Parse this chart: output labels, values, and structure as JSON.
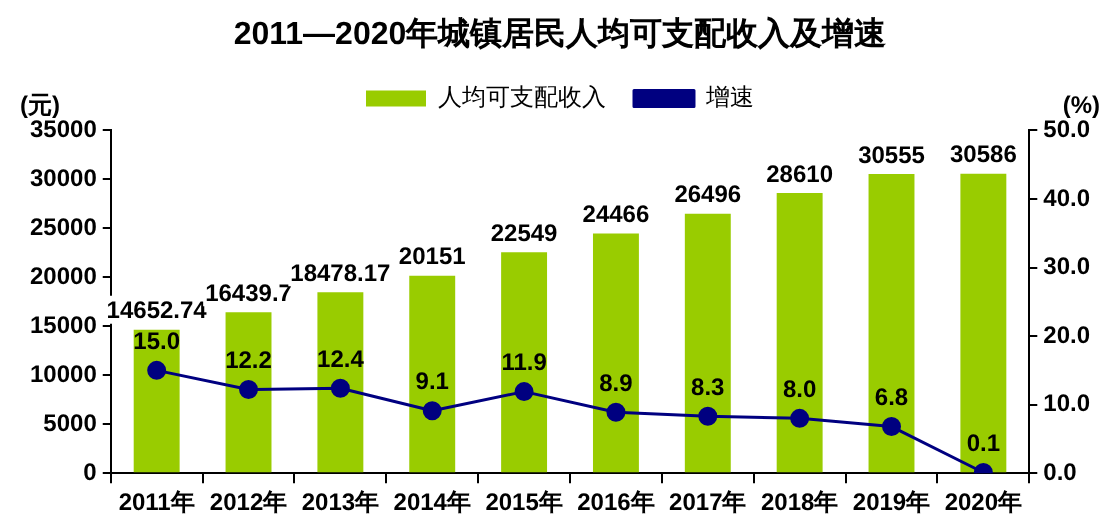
{
  "chart_data": {
    "type": "bar",
    "title": "2011—2020年城镇居民人均可支配收入及增速",
    "categories": [
      "2011年",
      "2012年",
      "2013年",
      "2014年",
      "2015年",
      "2016年",
      "2017年",
      "2018年",
      "2019年",
      "2020年"
    ],
    "series": [
      {
        "name": "人均可支配收入",
        "color": "#99cc00",
        "values": [
          14652.74,
          16439.7,
          18478.17,
          20151,
          22549,
          24466,
          26496,
          28610,
          30555,
          30586
        ],
        "value_labels": [
          "14652.74",
          "16439.7",
          "18478.17",
          "20151",
          "22549",
          "24466",
          "26496",
          "28610",
          "30555",
          "30586"
        ]
      },
      {
        "name": "增速",
        "type": "line",
        "axis": "y2",
        "color": "#000080",
        "values": [
          15.0,
          12.2,
          12.4,
          9.1,
          11.9,
          8.9,
          8.3,
          8.0,
          6.8,
          0.1
        ],
        "value_labels": [
          "15.0",
          "12.2",
          "12.4",
          "9.1",
          "11.9",
          "8.9",
          "8.3",
          "8.0",
          "6.8",
          "0.1"
        ]
      }
    ],
    "ylabel": "(元)",
    "y2label": "(%)",
    "ylim": [
      0,
      35000
    ],
    "yticks": [
      0,
      5000,
      10000,
      15000,
      20000,
      25000,
      30000,
      35000
    ],
    "y2lim": [
      0,
      50
    ],
    "y2ticks": [
      {
        "value": 0,
        "label": "0.0"
      },
      {
        "value": 10,
        "label": "10.0"
      },
      {
        "value": 20,
        "label": "20.0"
      },
      {
        "value": 30,
        "label": "30.0"
      },
      {
        "value": 40,
        "label": "40.0"
      },
      {
        "value": 50,
        "label": "50.0"
      }
    ],
    "grid": false,
    "legend": "top",
    "marker": "circle"
  }
}
